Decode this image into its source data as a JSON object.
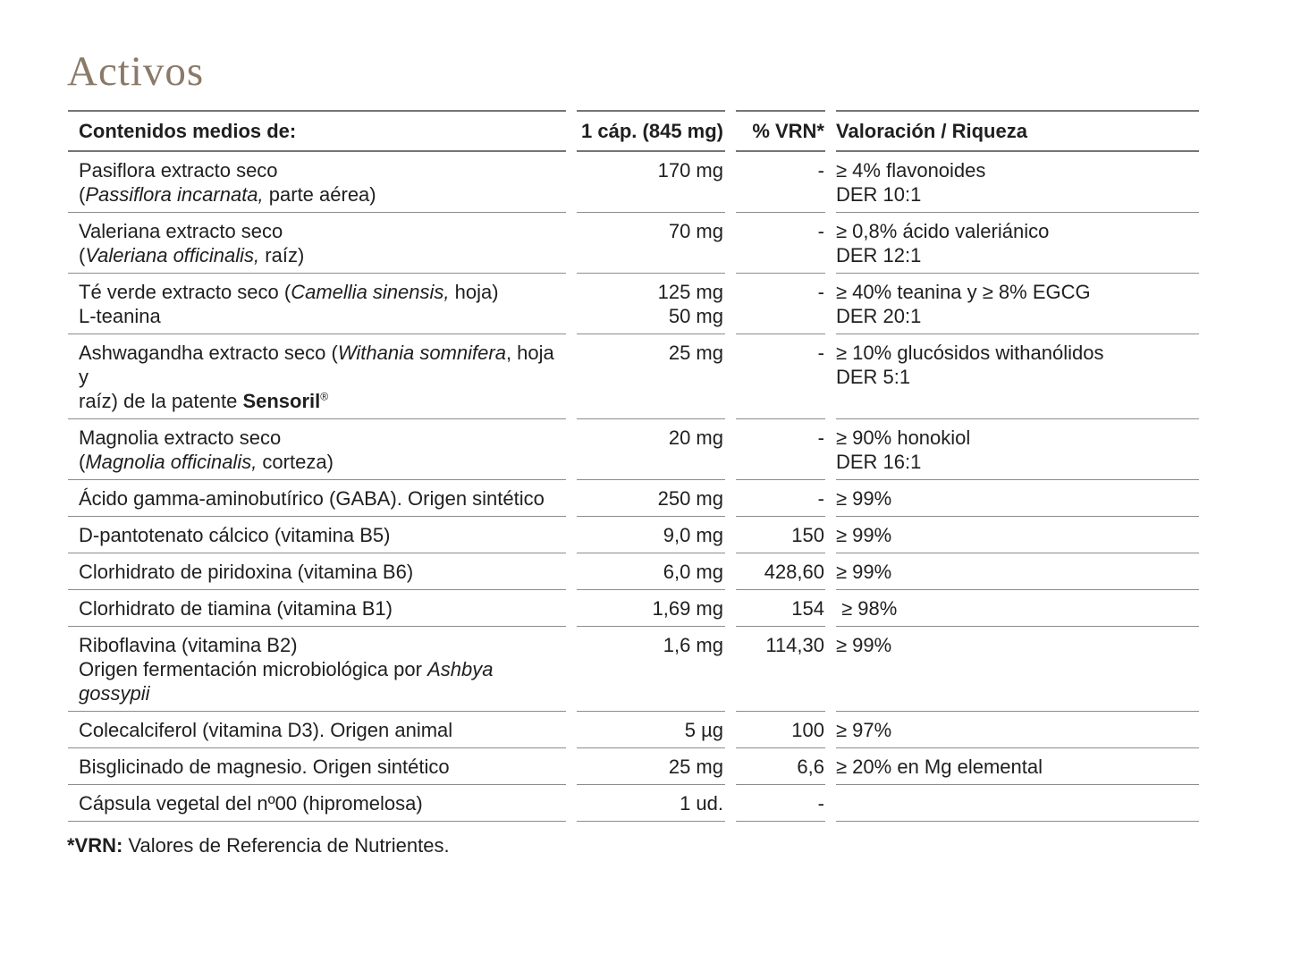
{
  "page": {
    "title": "Activos",
    "footnote": {
      "prefix": "*VRN:",
      "text": " Valores de Referencia de Nutrientes."
    }
  },
  "colors": {
    "background": "#FFFFFF",
    "text": "#1F1F1F",
    "title": "#8B7A68",
    "header_rule": "#757575",
    "row_rule": "#8C8C8C"
  },
  "table": {
    "headers": [
      "Contenidos medios de:",
      "1 cáp. (845 mg)",
      "% VRN*",
      "Valoración / Riqueza"
    ],
    "rows": [
      {
        "name": [
          [
            {
              "t": "Pasiflora extracto seco",
              "s": ""
            }
          ],
          [
            {
              "t": "(",
              "s": ""
            },
            {
              "t": "Passiflora incarnata,",
              "s": "i"
            },
            {
              "t": " parte aérea)",
              "s": ""
            }
          ]
        ],
        "amount": [
          "170 mg"
        ],
        "vrn": "-",
        "valuation": [
          "≥ 4% flavonoides",
          "DER 10:1"
        ]
      },
      {
        "name": [
          [
            {
              "t": "Valeriana extracto seco",
              "s": ""
            }
          ],
          [
            {
              "t": "(",
              "s": ""
            },
            {
              "t": "Valeriana officinalis,",
              "s": "i"
            },
            {
              "t": " raíz)",
              "s": ""
            }
          ]
        ],
        "amount": [
          "70 mg"
        ],
        "vrn": "-",
        "valuation": [
          "≥ 0,8% ácido valeriánico",
          "DER 12:1"
        ]
      },
      {
        "name": [
          [
            {
              "t": "Té verde extracto seco (",
              "s": ""
            },
            {
              "t": "Camellia sinensis,",
              "s": "i"
            },
            {
              "t": " hoja)",
              "s": ""
            }
          ],
          [
            {
              "t": "L-teanina",
              "s": ""
            }
          ]
        ],
        "amount": [
          "125 mg",
          "50 mg"
        ],
        "vrn": "-",
        "valuation": [
          "≥ 40% teanina y ≥ 8% EGCG",
          "DER 20:1"
        ]
      },
      {
        "name": [
          [
            {
              "t": "Ashwagandha extracto seco (",
              "s": ""
            },
            {
              "t": "Withania somnifera",
              "s": "i"
            },
            {
              "t": ", hoja y",
              "s": ""
            }
          ],
          [
            {
              "t": "raíz) de la patente ",
              "s": ""
            },
            {
              "t": "Sensoril",
              "s": "b"
            },
            {
              "t": "®",
              "s": "sup"
            }
          ]
        ],
        "amount": [
          "25 mg"
        ],
        "vrn": "-",
        "valuation": [
          "≥ 10% glucósidos withanólidos",
          "DER 5:1"
        ]
      },
      {
        "name": [
          [
            {
              "t": "Magnolia extracto seco",
              "s": ""
            }
          ],
          [
            {
              "t": "(",
              "s": ""
            },
            {
              "t": "Magnolia officinalis,",
              "s": "i"
            },
            {
              "t": " corteza)",
              "s": ""
            }
          ]
        ],
        "amount": [
          "20 mg"
        ],
        "vrn": "-",
        "valuation": [
          "≥ 90% honokiol",
          "DER 16:1"
        ]
      },
      {
        "name": [
          [
            {
              "t": "Ácido gamma-aminobutírico (GABA). Origen sintético",
              "s": ""
            }
          ]
        ],
        "amount": [
          "250 mg"
        ],
        "vrn": "-",
        "valuation": [
          "≥ 99%"
        ]
      },
      {
        "name": [
          [
            {
              "t": "D-pantotenato cálcico (vitamina B5)",
              "s": ""
            }
          ]
        ],
        "amount": [
          "9,0 mg"
        ],
        "vrn": "150",
        "valuation": [
          "≥ 99%"
        ]
      },
      {
        "name": [
          [
            {
              "t": "Clorhidrato de piridoxina (vitamina B6)",
              "s": ""
            }
          ]
        ],
        "amount": [
          "6,0 mg"
        ],
        "vrn": "428,60",
        "valuation": [
          "≥ 99%"
        ]
      },
      {
        "name": [
          [
            {
              "t": "Clorhidrato de tiamina (vitamina B1)",
              "s": ""
            }
          ]
        ],
        "amount": [
          "1,69 mg"
        ],
        "vrn": "154",
        "valuation": [
          " ≥ 98%"
        ]
      },
      {
        "name": [
          [
            {
              "t": "Riboflavina (vitamina B2)",
              "s": ""
            }
          ],
          [
            {
              "t": "Origen fermentación microbiológica por ",
              "s": ""
            },
            {
              "t": "Ashbya gossypii",
              "s": "i"
            }
          ]
        ],
        "amount": [
          "1,6 mg"
        ],
        "vrn": "114,30",
        "valuation": [
          "≥ 99%"
        ]
      },
      {
        "name": [
          [
            {
              "t": "Colecalciferol (vitamina D3). Origen animal",
              "s": ""
            }
          ]
        ],
        "amount": [
          "5 µg"
        ],
        "vrn": "100",
        "valuation": [
          "≥ 97%"
        ]
      },
      {
        "name": [
          [
            {
              "t": "Bisglicinado de magnesio. Origen sintético",
              "s": ""
            }
          ]
        ],
        "amount": [
          "25 mg"
        ],
        "vrn": "6,6",
        "valuation": [
          "≥ 20% en Mg elemental"
        ]
      },
      {
        "name": [
          [
            {
              "t": "Cápsula vegetal del nº00 (hipromelosa)",
              "s": ""
            }
          ]
        ],
        "amount": [
          "1 ud."
        ],
        "vrn": "-",
        "valuation": []
      }
    ]
  }
}
